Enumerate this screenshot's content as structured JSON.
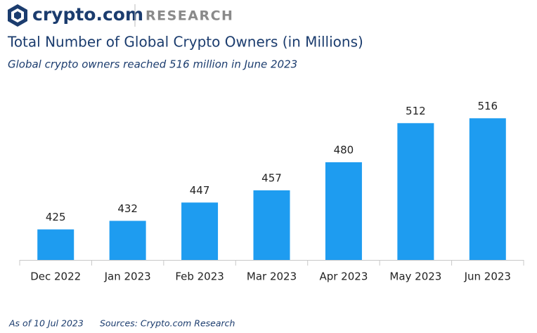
{
  "header": {
    "brand": "crypto.com",
    "section": "RESEARCH"
  },
  "chart_data": {
    "type": "bar",
    "title": "Total Number of Global Crypto Owners (in Millions)",
    "subtitle": "Global crypto owners reached 516 million in June 2023",
    "categories": [
      "Dec 2022",
      "Jan 2023",
      "Feb 2023",
      "Mar 2023",
      "Apr 2023",
      "May 2023",
      "Jun 2023"
    ],
    "values": [
      425,
      432,
      447,
      457,
      480,
      512,
      516
    ],
    "color": "#1e9cf0",
    "ylim": [
      400,
      530
    ]
  },
  "footer": {
    "date_note": "As of 10 Jul 2023",
    "sources": "Sources: Crypto.com Research"
  }
}
